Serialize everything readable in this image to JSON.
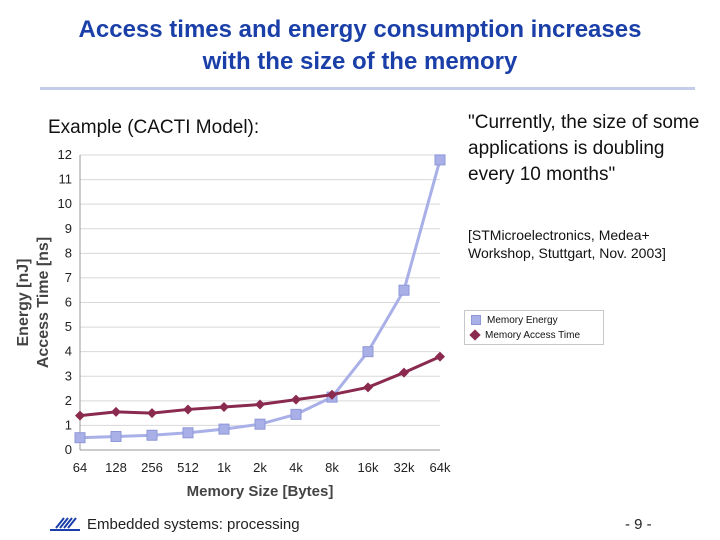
{
  "title": {
    "line1": "Access times and energy consumption increases",
    "line2": "with the size of the memory"
  },
  "example_label": "Example (CACTI Model):",
  "quote": "\"Currently, the size of some applications is doubling every 10 months\"",
  "citation": "[STMicroelectronics, Medea+ Workshop, Stuttgart, Nov. 2003]",
  "footer": {
    "text": "Embedded systems: processing",
    "page": "- 9 -"
  },
  "chart_data": {
    "type": "line",
    "xlabel": "Memory Size [Bytes]",
    "ylabel_line1": "Energy [nJ]",
    "ylabel_line2": "Access Time [ns]",
    "categories": [
      "64",
      "128",
      "256",
      "512",
      "1k",
      "2k",
      "4k",
      "8k",
      "16k",
      "32k",
      "64k"
    ],
    "ylim": [
      0,
      12
    ],
    "yticks": [
      "0",
      "1",
      "2",
      "3",
      "4",
      "5",
      "6",
      "7",
      "8",
      "9",
      "10",
      "11",
      "12"
    ],
    "grid": true,
    "legend_position": "right",
    "series": [
      {
        "name": "Memory Energy",
        "marker": "square",
        "color": "#a9b0e8",
        "values": [
          0.5,
          0.55,
          0.6,
          0.7,
          0.85,
          1.05,
          1.45,
          2.15,
          4.0,
          6.5,
          11.8
        ]
      },
      {
        "name": "Memory Access Time",
        "marker": "diamond",
        "color": "#8a2a4e",
        "values": [
          1.4,
          1.55,
          1.5,
          1.65,
          1.75,
          1.85,
          2.05,
          2.25,
          2.55,
          3.15,
          3.8
        ]
      }
    ]
  },
  "colors": {
    "title": "#1a3fa8",
    "grid": "#d8d8d8"
  }
}
